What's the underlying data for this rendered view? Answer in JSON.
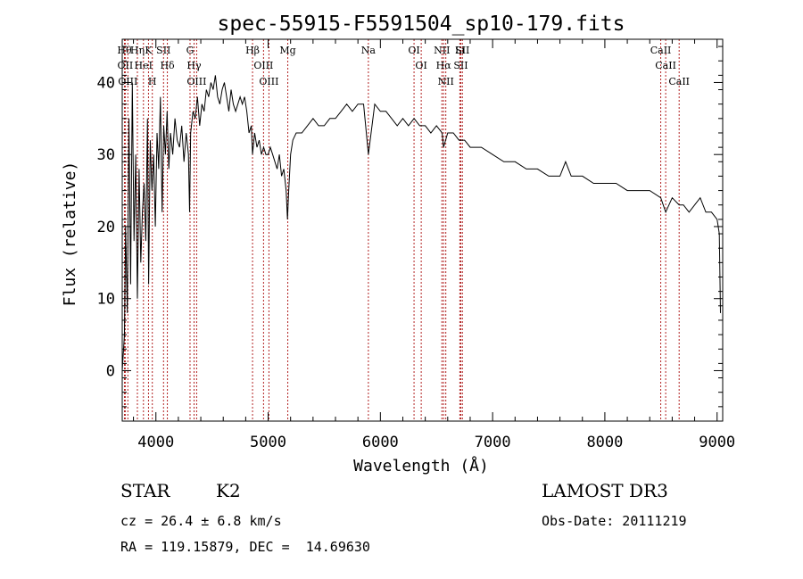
{
  "chart_data": {
    "type": "line",
    "title": "spec-55915-F5591504_sp10-179.fits",
    "xlabel": "Wavelength (Å)",
    "ylabel": "Flux (relative)",
    "xlim": [
      3700,
      9050
    ],
    "ylim": [
      -7,
      46
    ],
    "x_ticks": [
      4000,
      5000,
      6000,
      7000,
      8000,
      9000
    ],
    "y_ticks": [
      0,
      10,
      20,
      30,
      40
    ],
    "grid": false,
    "series": [
      {
        "name": "flux",
        "x": [
          3700,
          3720,
          3730,
          3745,
          3760,
          3775,
          3790,
          3805,
          3820,
          3835,
          3850,
          3865,
          3880,
          3895,
          3910,
          3925,
          3935,
          3950,
          3965,
          3980,
          3995,
          4010,
          4025,
          4040,
          4055,
          4070,
          4085,
          4100,
          4115,
          4130,
          4150,
          4170,
          4190,
          4210,
          4230,
          4250,
          4270,
          4290,
          4300,
          4310,
          4330,
          4350,
          4370,
          4390,
          4410,
          4430,
          4450,
          4470,
          4490,
          4510,
          4530,
          4550,
          4570,
          4590,
          4610,
          4630,
          4650,
          4670,
          4690,
          4710,
          4730,
          4750,
          4770,
          4790,
          4810,
          4830,
          4850,
          4861,
          4880,
          4900,
          4920,
          4940,
          4960,
          4980,
          5000,
          5020,
          5040,
          5060,
          5080,
          5100,
          5120,
          5140,
          5160,
          5172,
          5183,
          5200,
          5220,
          5250,
          5300,
          5350,
          5400,
          5450,
          5500,
          5550,
          5600,
          5650,
          5700,
          5750,
          5800,
          5850,
          5893,
          5950,
          6000,
          6050,
          6100,
          6150,
          6200,
          6250,
          6300,
          6350,
          6400,
          6450,
          6500,
          6550,
          6563,
          6600,
          6650,
          6700,
          6750,
          6800,
          6900,
          7000,
          7100,
          7200,
          7300,
          7400,
          7500,
          7600,
          7650,
          7700,
          7800,
          7900,
          8000,
          8100,
          8200,
          8300,
          8400,
          8498,
          8542,
          8600,
          8662,
          8700,
          8750,
          8800,
          8850,
          8900,
          8950,
          9000,
          9010,
          9020,
          9030
        ],
        "y": [
          0,
          5,
          20,
          8,
          35,
          12,
          40,
          18,
          30,
          10,
          28,
          15,
          22,
          26,
          18,
          35,
          12,
          32,
          25,
          30,
          20,
          33,
          28,
          38,
          22,
          34,
          30,
          36,
          28,
          33,
          30,
          35,
          32,
          31,
          34,
          29,
          33,
          30,
          22,
          33,
          36,
          35,
          38,
          34,
          37,
          36,
          39,
          38,
          40,
          39,
          41,
          38,
          37,
          39,
          40,
          38,
          36,
          39,
          37,
          36,
          37,
          38,
          37,
          38,
          36,
          33,
          34,
          30,
          33,
          31,
          32,
          30,
          31,
          30,
          30,
          31,
          30,
          29,
          28,
          30,
          27,
          28,
          25,
          21,
          25,
          30,
          32,
          33,
          33,
          34,
          35,
          34,
          34,
          35,
          35,
          36,
          37,
          36,
          37,
          37,
          30,
          37,
          36,
          36,
          35,
          34,
          35,
          34,
          35,
          34,
          34,
          33,
          34,
          33,
          31,
          33,
          33,
          32,
          32,
          31,
          31,
          30,
          29,
          29,
          28,
          28,
          27,
          27,
          29,
          27,
          27,
          26,
          26,
          26,
          25,
          25,
          25,
          24,
          22,
          24,
          23,
          23,
          22,
          23,
          24,
          22,
          22,
          21,
          20,
          19,
          8
        ]
      }
    ],
    "lines": [
      {
        "x": 3720,
        "label": "Hθ"
      },
      {
        "x": 3727,
        "label": "OII"
      },
      {
        "x": 3750,
        "label": "OIII"
      },
      {
        "x": 3835,
        "label": "Hη"
      },
      {
        "x": 3889,
        "label": "HeI"
      },
      {
        "x": 3934,
        "label": "K"
      },
      {
        "x": 3968,
        "label": "H"
      },
      {
        "x": 4068,
        "label": "SII"
      },
      {
        "x": 4102,
        "label": "Hδ"
      },
      {
        "x": 4304,
        "label": "G"
      },
      {
        "x": 4340,
        "label": "Hγ"
      },
      {
        "x": 4363,
        "label": "OIII"
      },
      {
        "x": 4861,
        "label": "Hβ"
      },
      {
        "x": 4959,
        "label": "OIII"
      },
      {
        "x": 5007,
        "label": "OIII"
      },
      {
        "x": 5175,
        "label": "Mg"
      },
      {
        "x": 5893,
        "label": "Na"
      },
      {
        "x": 6300,
        "label": "OI"
      },
      {
        "x": 6364,
        "label": "OI"
      },
      {
        "x": 6548,
        "label": "NII"
      },
      {
        "x": 6563,
        "label": "Hα"
      },
      {
        "x": 6583,
        "label": "NII"
      },
      {
        "x": 6708,
        "label": "Li"
      },
      {
        "x": 6717,
        "label": "SII"
      },
      {
        "x": 6731,
        "label": "SII"
      },
      {
        "x": 8498,
        "label": "CaII"
      },
      {
        "x": 8542,
        "label": "CaII"
      },
      {
        "x": 8662,
        "label": "CaII"
      }
    ]
  },
  "info": {
    "class": "STAR",
    "subclass": "K2",
    "survey": "LAMOST DR3",
    "cz": "cz = 26.4 ± 6.8 km/s",
    "obs_date": "Obs-Date: 20111219",
    "coords": "RA = 119.15879, DEC =  14.69630"
  },
  "colors": {
    "line_marker": "#b22222",
    "spectrum": "#000000",
    "axes": "#000000"
  }
}
